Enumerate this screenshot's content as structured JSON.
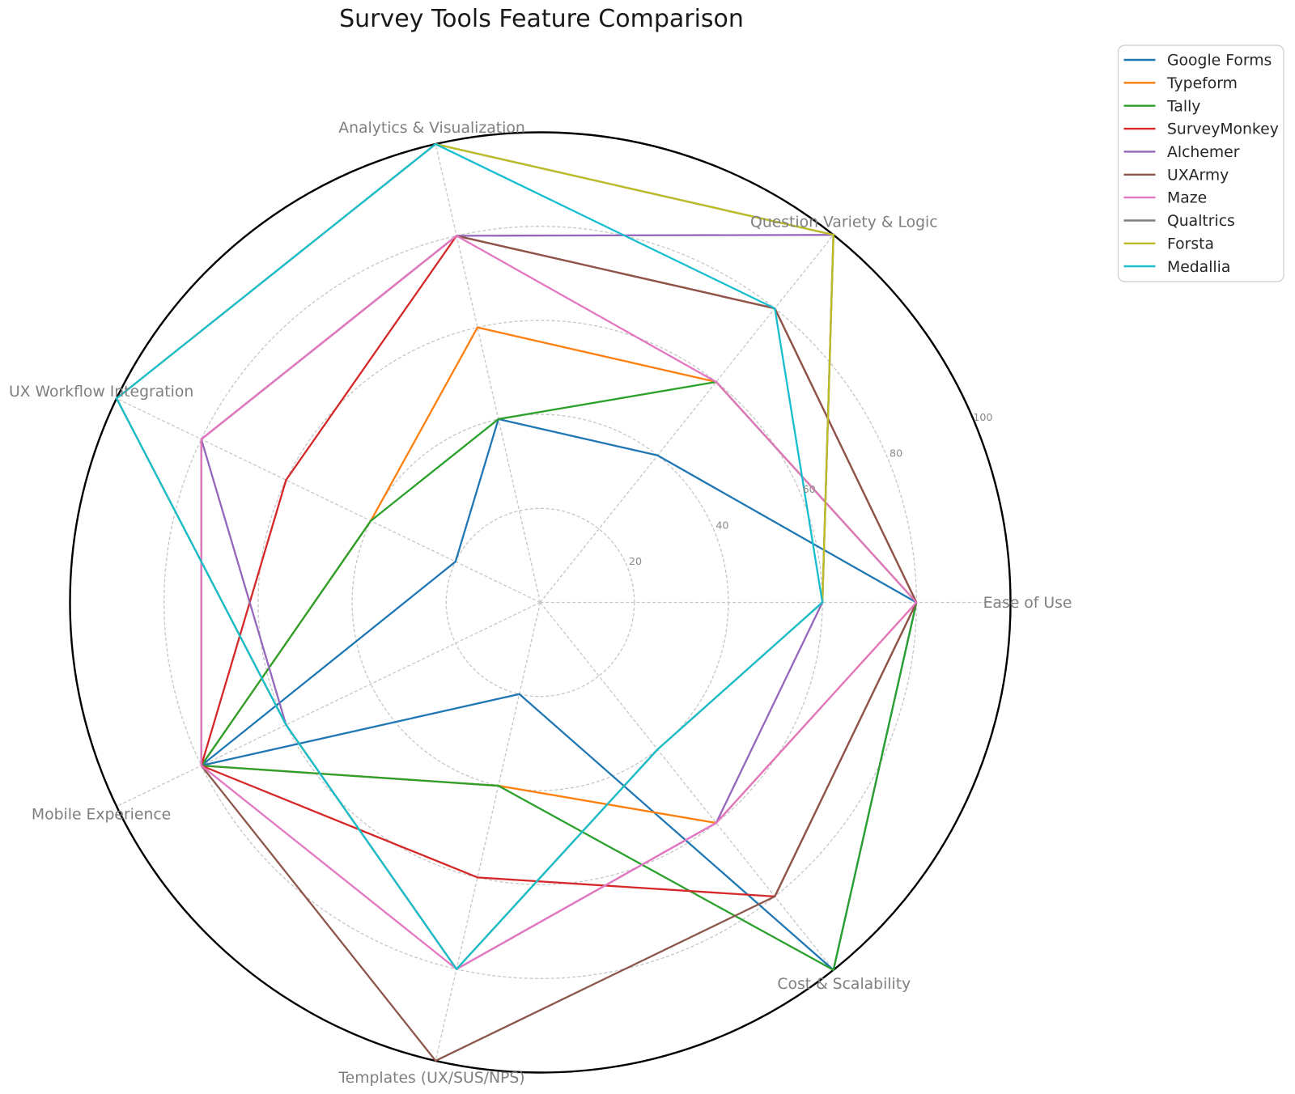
{
  "chart_data": {
    "type": "radar",
    "title": "Survey Tools Feature Comparison",
    "categories": [
      "Ease of Use",
      "Question Variety & Logic",
      "Analytics & Visualization",
      "UX Workflow Integration",
      "Mobile Experience",
      "Templates (UX/SUS/NPS)",
      "Cost & Scalability"
    ],
    "radial_ticks": [
      20,
      40,
      60,
      80,
      100
    ],
    "r_range": [
      0,
      100
    ],
    "grid": "dashed",
    "legend_position": "upper right",
    "series": [
      {
        "name": "Google Forms",
        "color": "#1f77b4",
        "values": [
          80,
          40,
          40,
          20,
          80,
          20,
          100
        ]
      },
      {
        "name": "Typeform",
        "color": "#ff7f0e",
        "values": [
          80,
          60,
          60,
          40,
          80,
          40,
          60
        ]
      },
      {
        "name": "Tally",
        "color": "#2ca02c",
        "values": [
          80,
          60,
          40,
          40,
          80,
          40,
          100
        ]
      },
      {
        "name": "SurveyMonkey",
        "color": "#d62728",
        "values": [
          80,
          80,
          80,
          60,
          80,
          60,
          80
        ]
      },
      {
        "name": "Alchemer",
        "color": "#9467bd",
        "values": [
          60,
          100,
          80,
          80,
          60,
          80,
          60
        ]
      },
      {
        "name": "UXArmy",
        "color": "#8c564b",
        "values": [
          80,
          80,
          80,
          80,
          80,
          100,
          80
        ]
      },
      {
        "name": "Maze",
        "color": "#e377c2",
        "values": [
          80,
          60,
          80,
          80,
          80,
          80,
          60
        ]
      },
      {
        "name": "Qualtrics",
        "color": "#7f7f7f",
        "values": [
          60,
          100,
          100,
          100,
          60,
          80,
          40
        ]
      },
      {
        "name": "Forsta",
        "color": "#bcbd22",
        "values": [
          60,
          100,
          100,
          100,
          60,
          80,
          40
        ]
      },
      {
        "name": "Medallia",
        "color": "#17becf",
        "values": [
          60,
          80,
          100,
          100,
          60,
          80,
          40
        ]
      }
    ]
  }
}
